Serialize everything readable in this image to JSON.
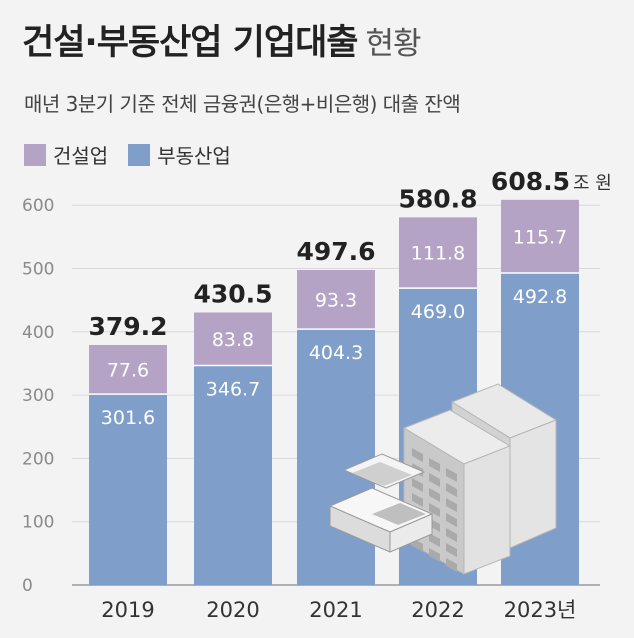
{
  "header": {
    "title_bold": "건설·부동산업 기업대출",
    "title_light": "현황",
    "subtitle": "매년 3분기 기준 전체 금융권(은행+비은행) 대출 잔액"
  },
  "colors": {
    "construction": "#b5a3c6",
    "realestate": "#7f9ec9",
    "grid": "#dadada",
    "axis": "#999999"
  },
  "chart_data": {
    "type": "bar",
    "stacked": true,
    "categories": [
      "2019",
      "2020",
      "2021",
      "2022",
      "2023년"
    ],
    "series": [
      {
        "name": "부동산업",
        "values": [
          301.6,
          346.7,
          404.3,
          469.0,
          492.8
        ]
      },
      {
        "name": "건설업",
        "values": [
          77.6,
          83.8,
          93.3,
          111.8,
          115.7
        ]
      }
    ],
    "totals": [
      379.2,
      430.5,
      497.6,
      580.8,
      608.5
    ],
    "series_labels": {
      "realestate": [
        "301.6",
        "346.7",
        "404.3",
        "469.0",
        "492.8"
      ],
      "construction": [
        "77.6",
        "83.8",
        "93.3",
        "111.8",
        "115.7"
      ]
    },
    "total_labels": [
      "379.2",
      "430.5",
      "497.6",
      "580.8",
      "608.5"
    ],
    "unit_label": "조 원",
    "yticks": [
      0,
      100,
      200,
      300,
      400,
      500,
      600
    ],
    "ylim": [
      0,
      640
    ],
    "grid": true,
    "legend_position": "top-left"
  }
}
